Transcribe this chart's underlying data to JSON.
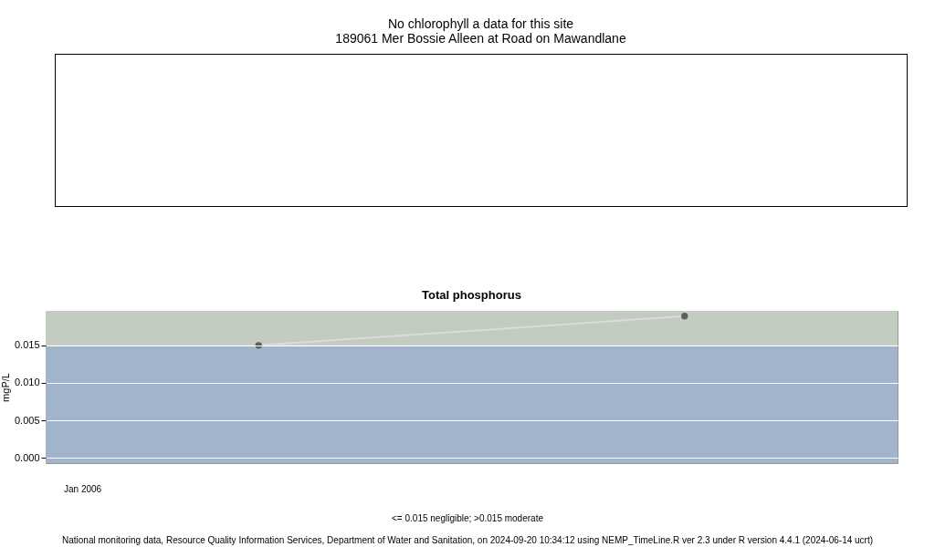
{
  "chart_data": [
    {
      "type": "other",
      "title": "No chlorophyll a data for this site",
      "subtitle": "189061 Mer Bossie Alleen at Road on Mawandlane"
    },
    {
      "type": "line",
      "title": "Total phosphorus",
      "ylabel": "mgP/L",
      "categories": [
        null,
        null
      ],
      "ylim": [
        -0.0007,
        0.0196
      ],
      "yticks": [
        {
          "value": 0,
          "label": "0.000"
        },
        {
          "value": 0.005,
          "label": "0.005"
        },
        {
          "value": 0.01,
          "label": "0.010"
        },
        {
          "value": 0.015,
          "label": "0.015"
        }
      ],
      "series": [
        {
          "type": "line",
          "color": "#dcdcdc",
          "marker": "none",
          "values": [
            0.015,
            0.0189
          ]
        },
        {
          "type": "scatter",
          "color": "#5f5f5f",
          "marker": "circle",
          "values": [
            0.015,
            0.0189
          ]
        }
      ],
      "grid": "y",
      "legend": false,
      "bands": [
        {
          "axis": "y",
          "from": -0.0007,
          "to": 0.015,
          "color": "#a2b4cc"
        },
        {
          "axis": "y",
          "from": 0.015,
          "to": 0.0196,
          "color": "#c2ccc0"
        }
      ],
      "annotations": [
        "Jan 2006",
        "<= 0.015 negligible; >0.015 moderate",
        "National monitoring data, Resource Quality Information Services, Department of Water and Sanitation, on 2024-09-20 10:34:12 using NEMP_TimeLine.R ver 2.3 under R version 4.4.1 (2024-06-14 ucrt)"
      ]
    }
  ]
}
